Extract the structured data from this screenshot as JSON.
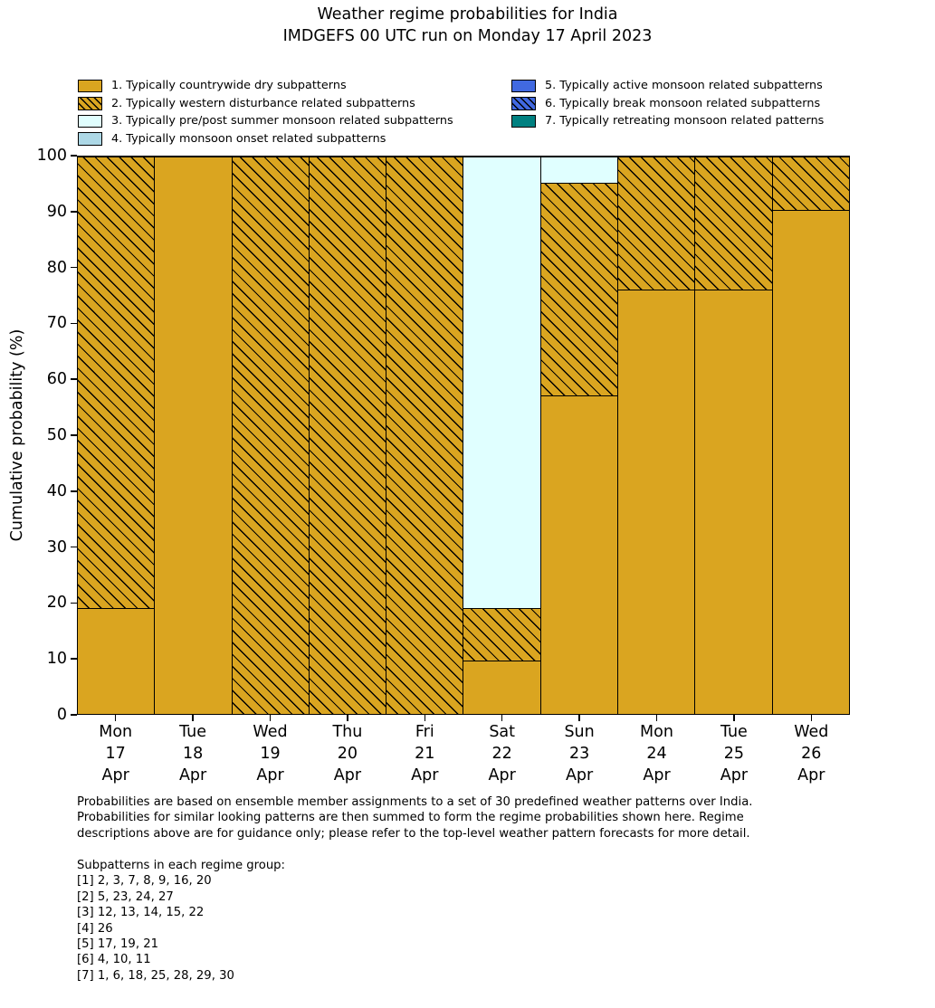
{
  "title": "Weather regime probabilities for India\nIMDGEFS 00 UTC run on Monday 17 April 2023",
  "legend": {
    "items": [
      {
        "label": "1. Typically countrywide dry subpatterns",
        "fill": "#DAA520",
        "hatch": false,
        "column": 0
      },
      {
        "label": "2. Typically western disturbance related subpatterns",
        "fill": "#DAA520",
        "hatch": true,
        "column": 0
      },
      {
        "label": "3. Typically pre/post summer monsoon related subpatterns",
        "fill": "#E0FFFF",
        "hatch": false,
        "column": 0
      },
      {
        "label": "4. Typically monsoon onset related subpatterns",
        "fill": "#ADD8E6",
        "hatch": false,
        "column": 0
      },
      {
        "label": "5. Typically active monsoon related subpatterns",
        "fill": "#4169E1",
        "hatch": false,
        "column": 1
      },
      {
        "label": "6. Typically break monsoon related subpatterns",
        "fill": "#4169E1",
        "hatch": true,
        "column": 1
      },
      {
        "label": "7. Typically retreating monsoon related patterns",
        "fill": "#008080",
        "hatch": false,
        "column": 1
      }
    ]
  },
  "chart_data": {
    "type": "bar",
    "stacked": true,
    "title": "Weather regime probabilities for India\nIMDGEFS 00 UTC run on Monday 17 April 2023",
    "xlabel": "",
    "ylabel": "Cumulative probability (%)",
    "ylim": [
      0,
      100
    ],
    "yticks": [
      0,
      10,
      20,
      30,
      40,
      50,
      60,
      70,
      80,
      90,
      100
    ],
    "grid": false,
    "legend_position": "top",
    "bar_edge_color": "#000000",
    "categories": [
      "Mon\n17\nApr",
      "Tue\n18\nApr",
      "Wed\n19\nApr",
      "Thu\n20\nApr",
      "Fri\n21\nApr",
      "Sat\n22\nApr",
      "Sun\n23\nApr",
      "Mon\n24\nApr",
      "Tue\n25\nApr",
      "Wed\n26\nApr"
    ],
    "series": [
      {
        "name": "1. Typically countrywide dry subpatterns",
        "values": [
          19.05,
          100,
          0,
          0,
          0,
          9.52,
          57.14,
          76.19,
          76.19,
          90.48
        ]
      },
      {
        "name": "2. Typically western disturbance related subpatterns",
        "values": [
          80.95,
          0,
          100,
          100,
          100,
          9.52,
          38.1,
          23.81,
          23.81,
          9.52
        ]
      },
      {
        "name": "3. Typically pre/post summer monsoon related subpatterns",
        "values": [
          0,
          0,
          0,
          0,
          0,
          80.95,
          4.76,
          0,
          0,
          0
        ]
      },
      {
        "name": "4. Typically monsoon onset related subpatterns",
        "values": [
          0,
          0,
          0,
          0,
          0,
          0,
          0,
          0,
          0,
          0
        ]
      },
      {
        "name": "5. Typically active monsoon related subpatterns",
        "values": [
          0,
          0,
          0,
          0,
          0,
          0,
          0,
          0,
          0,
          0
        ]
      },
      {
        "name": "6. Typically break monsoon related subpatterns",
        "values": [
          0,
          0,
          0,
          0,
          0,
          0,
          0,
          0,
          0,
          0
        ]
      },
      {
        "name": "7. Typically retreating monsoon related patterns",
        "values": [
          0,
          0,
          0,
          0,
          0,
          0,
          0,
          0,
          0,
          0
        ]
      }
    ]
  },
  "footer": {
    "paragraph": "Probabilities are based on ensemble member assignments to a set of 30 predefined weather patterns over India.\nProbabilities for similar looking patterns are then summed to form the regime probabilities shown here. Regime\ndescriptions above are for guidance only; please refer to the top-level weather pattern forecasts for more detail.",
    "subpatterns_header": "Subpatterns in each regime group:",
    "subpatterns": [
      "[1] 2, 3, 7, 8, 9, 16, 20",
      "[2] 5, 23, 24, 27",
      "[3] 12, 13, 14, 15, 22",
      "[4] 26",
      "[5] 17, 19, 21",
      "[6] 4, 10, 11",
      "[7] 1, 6, 18, 25, 28, 29, 30"
    ]
  }
}
